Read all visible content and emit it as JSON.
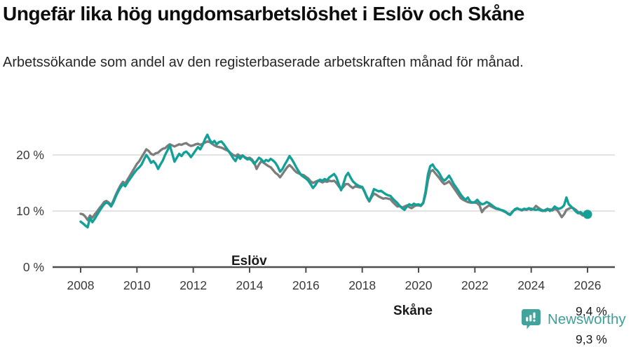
{
  "header": {
    "title": "Ungefär lika hög ungdomsarbetslöshet i Eslöv och Skåne",
    "subtitle": "Arbetssökande som andel av den registerbaserade arbetskraften månad för månad."
  },
  "chart_data": {
    "type": "line",
    "title": "Ungefär lika hög ungdomsarbetslöshet i Eslöv och Skåne",
    "xlabel": "",
    "ylabel": "",
    "x_unit": "months, Jan 2008 – Jan 2026",
    "ylim": [
      0,
      25
    ],
    "grid": "horizontal",
    "legend_position": "inline-labels",
    "yticks": [
      {
        "value": 0,
        "label": "0 %"
      },
      {
        "value": 10,
        "label": "10 %"
      },
      {
        "value": 20,
        "label": "20 %"
      }
    ],
    "xticks": [
      {
        "year": 2008,
        "label": "2008"
      },
      {
        "year": 2010,
        "label": "2010"
      },
      {
        "year": 2012,
        "label": "2012"
      },
      {
        "year": 2014,
        "label": "2014"
      },
      {
        "year": 2016,
        "label": "2016"
      },
      {
        "year": 2018,
        "label": "2018"
      },
      {
        "year": 2020,
        "label": "2020"
      },
      {
        "year": 2022,
        "label": "2022"
      },
      {
        "year": 2024,
        "label": "2024"
      },
      {
        "year": 2026,
        "label": "2026"
      }
    ],
    "series": [
      {
        "name": "Eslöv",
        "color": "#13a096",
        "last_value_label": "9,4 %",
        "values": [
          8.1,
          7.8,
          7.4,
          7.1,
          8.8,
          8.0,
          8.6,
          9.3,
          10.0,
          10.6,
          11.2,
          11.5,
          11.3,
          10.8,
          11.6,
          12.6,
          13.5,
          14.2,
          14.8,
          14.4,
          15.1,
          15.7,
          16.3,
          16.9,
          17.4,
          17.8,
          18.3,
          19.2,
          20.0,
          19.4,
          18.6,
          18.9,
          18.4,
          17.5,
          18.3,
          19.0,
          20.0,
          20.8,
          21.7,
          20.3,
          18.8,
          19.5,
          20.2,
          19.8,
          20.4,
          20.6,
          20.2,
          19.6,
          20.2,
          20.8,
          21.4,
          21.0,
          21.8,
          22.8,
          23.6,
          22.7,
          22.1,
          22.5,
          21.9,
          22.3,
          22.4,
          21.9,
          21.3,
          20.7,
          20.1,
          19.4,
          18.9,
          19.8,
          19.3,
          19.9,
          19.5,
          19.2,
          19.3,
          19.0,
          18.4,
          18.9,
          19.5,
          19.2,
          18.7,
          19.1,
          18.9,
          19.3,
          19.0,
          18.6,
          17.9,
          17.0,
          17.5,
          18.3,
          19.0,
          19.8,
          19.2,
          18.5,
          17.7,
          17.0,
          16.4,
          16.1,
          15.8,
          15.4,
          14.8,
          14.1,
          14.6,
          15.3,
          15.6,
          15.4,
          15.7,
          15.5,
          16.0,
          16.3,
          16.6,
          16.0,
          14.8,
          13.7,
          14.9,
          16.2,
          16.8,
          16.0,
          15.3,
          14.9,
          14.6,
          14.4,
          14.3,
          13.5,
          12.5,
          11.8,
          12.8,
          13.9,
          13.7,
          13.5,
          13.6,
          13.3,
          13.0,
          12.8,
          12.7,
          12.2,
          11.8,
          11.4,
          10.9,
          10.5,
          10.2,
          10.8,
          11.2,
          11.0,
          11.3,
          11.1,
          11.2,
          11.0,
          11.5,
          13.5,
          16.5,
          18.0,
          18.3,
          17.6,
          17.2,
          16.6,
          15.8,
          15.4,
          15.8,
          16.3,
          15.6,
          14.8,
          14.2,
          13.6,
          12.9,
          12.4,
          12.0,
          12.4,
          11.7,
          11.5,
          11.6,
          12.0,
          11.5,
          11.2,
          11.3,
          11.6,
          11.4,
          11.1,
          10.8,
          10.5,
          10.4,
          10.2,
          10.1,
          9.9,
          9.5,
          9.3,
          9.8,
          10.3,
          10.5,
          10.3,
          10.2,
          10.4,
          10.3,
          10.5,
          10.4,
          10.3,
          10.2,
          10.3,
          10.1,
          10.0,
          10.2,
          10.4,
          10.0,
          10.3,
          10.8,
          10.5,
          10.4,
          10.6,
          11.0,
          12.4,
          11.2,
          10.8,
          10.4,
          9.9,
          9.6,
          9.8,
          9.5,
          9.4,
          9.4
        ]
      },
      {
        "name": "Skåne",
        "color": "#7d7d7d",
        "last_value_label": "9,3 %",
        "values": [
          9.5,
          9.4,
          9.0,
          8.4,
          9.2,
          8.8,
          9.4,
          9.9,
          10.5,
          11.0,
          11.6,
          11.8,
          11.5,
          11.0,
          11.9,
          12.9,
          13.8,
          14.6,
          15.2,
          14.9,
          15.6,
          16.3,
          17.0,
          17.7,
          18.4,
          18.9,
          19.6,
          20.3,
          21.0,
          20.7,
          20.2,
          20.0,
          20.3,
          20.4,
          20.8,
          21.1,
          21.2,
          21.6,
          21.9,
          21.7,
          21.5,
          21.7,
          21.9,
          21.8,
          22.0,
          22.1,
          21.8,
          21.6,
          21.7,
          21.9,
          22.0,
          21.8,
          22.0,
          22.2,
          22.4,
          22.3,
          22.0,
          21.7,
          21.5,
          21.4,
          21.3,
          21.1,
          20.9,
          20.7,
          20.3,
          20.0,
          19.8,
          20.1,
          19.8,
          19.9,
          19.6,
          19.4,
          19.5,
          19.2,
          18.6,
          17.5,
          18.3,
          18.9,
          18.6,
          18.3,
          18.0,
          17.8,
          17.3,
          16.8,
          16.5,
          16.0,
          16.6,
          17.2,
          17.8,
          18.2,
          17.8,
          17.3,
          16.9,
          16.7,
          16.5,
          16.4,
          16.1,
          15.8,
          15.3,
          15.0,
          15.2,
          15.4,
          15.3,
          15.1,
          15.3,
          15.2,
          15.4,
          15.3,
          15.4,
          15.0,
          14.4,
          13.9,
          14.3,
          14.8,
          14.8,
          14.4,
          14.1,
          14.4,
          14.3,
          14.2,
          14.2,
          13.4,
          12.4,
          11.7,
          12.5,
          13.1,
          12.9,
          12.6,
          12.4,
          12.2,
          12.3,
          12.2,
          12.1,
          11.6,
          11.2,
          10.8,
          10.9,
          10.6,
          10.8,
          11.0,
          10.7,
          10.5,
          10.8,
          11.0,
          11.0,
          10.9,
          11.4,
          13.0,
          15.5,
          17.0,
          17.3,
          16.8,
          16.3,
          15.8,
          15.2,
          14.8,
          15.0,
          15.3,
          14.7,
          14.1,
          13.5,
          12.9,
          12.3,
          12.0,
          11.8,
          11.6,
          11.5,
          11.5,
          11.5,
          11.4,
          11.0,
          9.8,
          10.4,
          10.7,
          11.0,
          10.8,
          10.6,
          10.4,
          10.3,
          10.2,
          10.0,
          9.8,
          9.6,
          9.4,
          9.9,
          10.2,
          10.4,
          10.3,
          10.1,
          10.3,
          10.2,
          10.4,
          10.2,
          10.4,
          10.9,
          10.6,
          10.3,
          10.1,
          10.0,
          10.2,
          10.3,
          10.1,
          10.4,
          10.2,
          9.6,
          8.9,
          9.4,
          10.2,
          10.4,
          10.6,
          10.5,
          10.2,
          9.8,
          9.5,
          9.2,
          9.3,
          9.3
        ]
      }
    ],
    "annotations": {
      "eslov_label": "Eslöv",
      "skane_label": "Skåne",
      "end_value_top": "9,4 %",
      "end_value_bottom": "9,3 %"
    },
    "colors": {
      "eslov": "#13a096",
      "skane": "#7d7d7d",
      "gridline": "#d9d9d9",
      "axis": "#4d4d4d",
      "tick_text": "#3a3a3a"
    }
  },
  "footer": {
    "brand": "Newsworthy"
  }
}
